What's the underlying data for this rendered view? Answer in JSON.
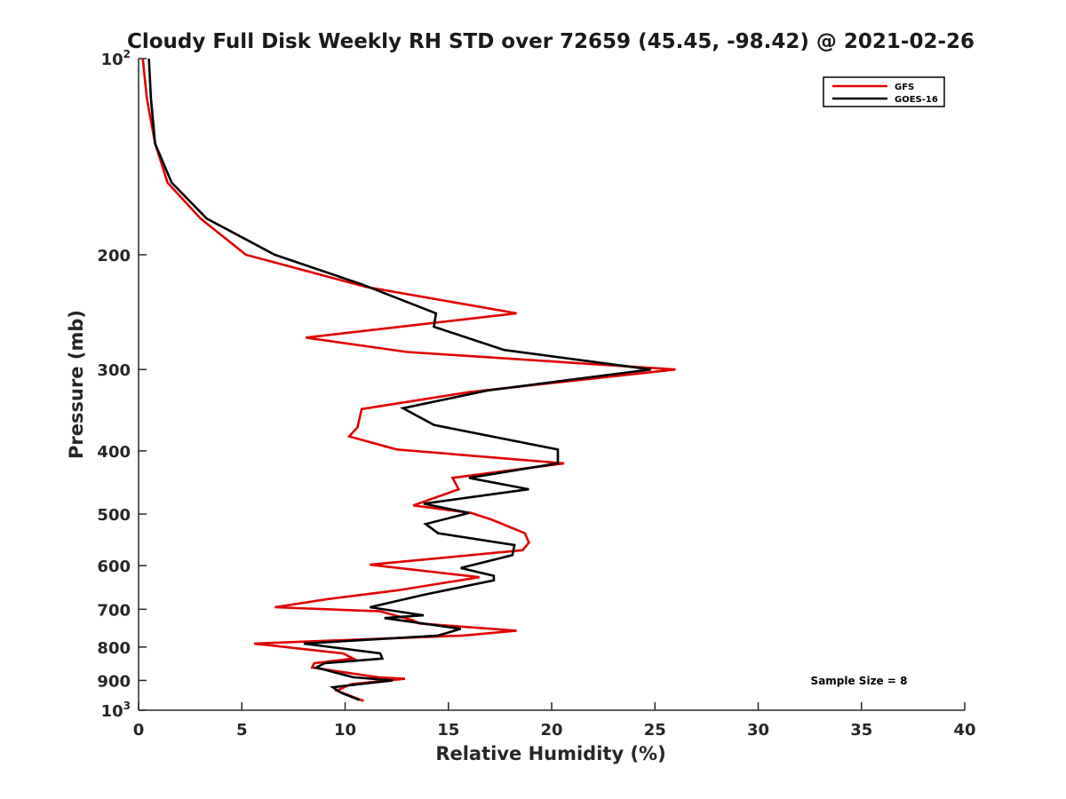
{
  "chart_data": {
    "type": "line",
    "title": "Cloudy Full Disk Weekly RH STD over 72659 (45.45, -98.42) @ 2021-02-26",
    "xlabel": "Relative Humidity (%)",
    "ylabel": "Pressure (mb)",
    "xlim": [
      0,
      40
    ],
    "ylim": [
      100,
      1000
    ],
    "y_scale": "log",
    "y_reversed": true,
    "x_ticks": [
      0,
      5,
      10,
      15,
      20,
      25,
      30,
      35,
      40
    ],
    "y_ticks": [
      {
        "value": 100,
        "base": "10",
        "exp": "2"
      },
      {
        "value": 200,
        "label": "200"
      },
      {
        "value": 300,
        "label": "300"
      },
      {
        "value": 400,
        "label": "400"
      },
      {
        "value": 500,
        "label": "500"
      },
      {
        "value": 600,
        "label": "600"
      },
      {
        "value": 700,
        "label": "700"
      },
      {
        "value": 800,
        "label": "800"
      },
      {
        "value": 900,
        "label": "900"
      },
      {
        "value": 1000,
        "base": "10",
        "exp": "3"
      }
    ],
    "grid": false,
    "legend_position": "top-right",
    "annotation": "Sample Size = 8",
    "series": [
      {
        "name": "GFS",
        "color": "#e00000",
        "points": [
          [
            0.2,
            100
          ],
          [
            0.4,
            115
          ],
          [
            0.8,
            135
          ],
          [
            1.4,
            155
          ],
          [
            3.0,
            176
          ],
          [
            5.2,
            200
          ],
          [
            11.0,
            224
          ],
          [
            18.3,
            246
          ],
          [
            8.1,
            268
          ],
          [
            13.0,
            282
          ],
          [
            26.0,
            300
          ],
          [
            16.0,
            325
          ],
          [
            10.8,
            345
          ],
          [
            10.6,
            368
          ],
          [
            10.2,
            380
          ],
          [
            12.5,
            398
          ],
          [
            20.6,
            418
          ],
          [
            15.2,
            440
          ],
          [
            15.5,
            458
          ],
          [
            13.3,
            485
          ],
          [
            16.1,
            498
          ],
          [
            17.1,
            510
          ],
          [
            18.7,
            535
          ],
          [
            18.9,
            553
          ],
          [
            18.6,
            568
          ],
          [
            11.2,
            598
          ],
          [
            16.5,
            625
          ],
          [
            12.5,
            655
          ],
          [
            9.2,
            675
          ],
          [
            6.6,
            695
          ],
          [
            11.7,
            705
          ],
          [
            13.3,
            728
          ],
          [
            13.6,
            736
          ],
          [
            18.3,
            755
          ],
          [
            15.7,
            768
          ],
          [
            5.6,
            790
          ],
          [
            9.9,
            818
          ],
          [
            10.4,
            833
          ],
          [
            8.5,
            847
          ],
          [
            8.4,
            860
          ],
          [
            11.6,
            890
          ],
          [
            12.9,
            895
          ],
          [
            10.3,
            912
          ],
          [
            9.6,
            933
          ],
          [
            10.9,
            968
          ]
        ]
      },
      {
        "name": "GOES-16",
        "color": "#000000",
        "points": [
          [
            0.5,
            100
          ],
          [
            0.6,
            115
          ],
          [
            0.8,
            135
          ],
          [
            1.6,
            155
          ],
          [
            3.3,
            176
          ],
          [
            6.6,
            200
          ],
          [
            10.8,
            222
          ],
          [
            14.4,
            246
          ],
          [
            14.3,
            258
          ],
          [
            17.7,
            280
          ],
          [
            24.8,
            300
          ],
          [
            16.9,
            323
          ],
          [
            12.8,
            344
          ],
          [
            14.3,
            365
          ],
          [
            20.3,
            398
          ],
          [
            20.3,
            418
          ],
          [
            16.0,
            440
          ],
          [
            18.9,
            458
          ],
          [
            13.8,
            482
          ],
          [
            16.0,
            498
          ],
          [
            13.9,
            518
          ],
          [
            14.5,
            535
          ],
          [
            18.2,
            558
          ],
          [
            18.1,
            578
          ],
          [
            15.6,
            605
          ],
          [
            17.2,
            622
          ],
          [
            17.2,
            632
          ],
          [
            13.8,
            665
          ],
          [
            11.2,
            695
          ],
          [
            13.8,
            715
          ],
          [
            11.9,
            722
          ],
          [
            15.6,
            750
          ],
          [
            14.5,
            768
          ],
          [
            8.0,
            790
          ],
          [
            11.7,
            818
          ],
          [
            11.8,
            833
          ],
          [
            9.0,
            847
          ],
          [
            8.6,
            860
          ],
          [
            10.4,
            890
          ],
          [
            12.3,
            900
          ],
          [
            9.4,
            922
          ],
          [
            9.8,
            940
          ],
          [
            10.7,
            965
          ]
        ]
      }
    ]
  }
}
